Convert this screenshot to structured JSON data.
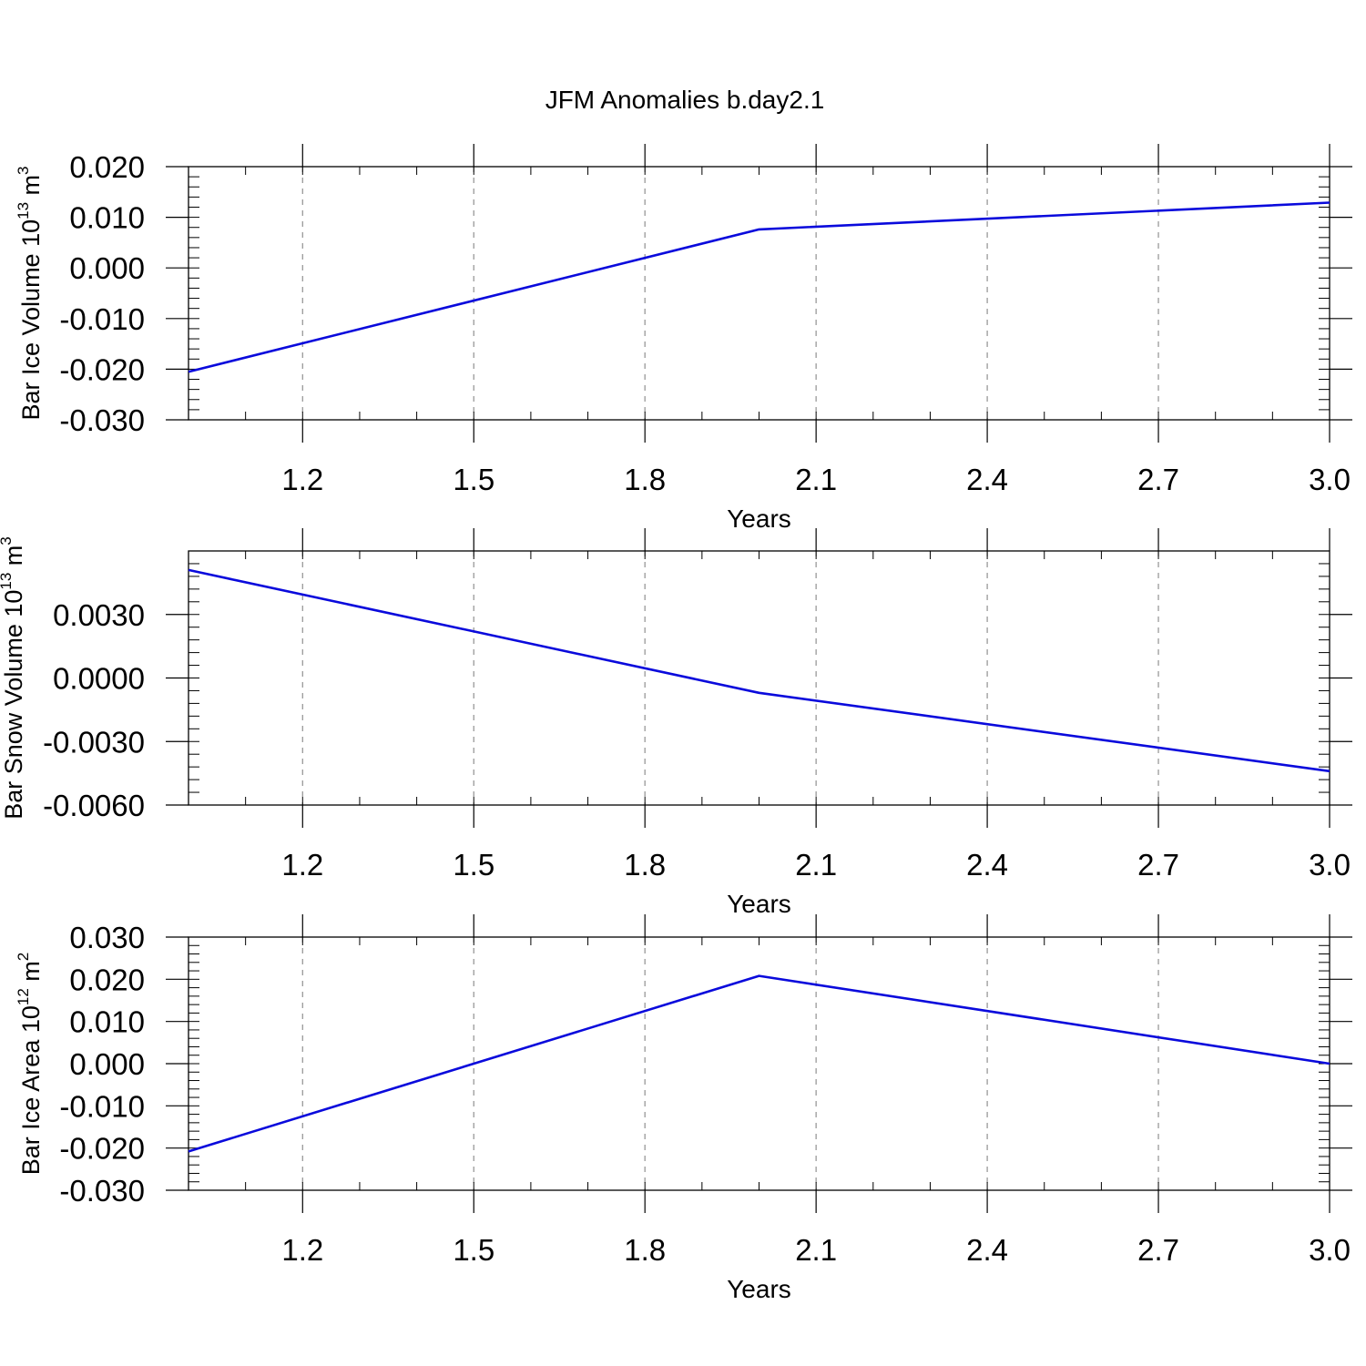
{
  "figure": {
    "title": "JFM Anomalies b.day2.1"
  },
  "colors": {
    "series_line": "#0a0adc",
    "frame": "#000000",
    "grid": "#999999"
  },
  "chart_data": [
    {
      "type": "line",
      "xlabel": "Years",
      "ylabel": {
        "text": "Bar Ice Volume 10",
        "exp": "13",
        "unit": " m",
        "unit_exp": "3"
      },
      "xlim": [
        1.0,
        3.0
      ],
      "ylim": [
        -0.03,
        0.02
      ],
      "x_ticks": [
        "1.2",
        "1.5",
        "1.8",
        "2.1",
        "2.4",
        "2.7",
        "3.0"
      ],
      "y_ticks": [
        "0.020",
        "0.010",
        "0.000",
        "-0.010",
        "-0.020",
        "-0.030"
      ],
      "grid": "vertical dashed",
      "series": [
        {
          "x": [
            1.0,
            2.0,
            3.0
          ],
          "y": [
            -0.0205,
            0.0076,
            0.0129
          ]
        }
      ]
    },
    {
      "type": "line",
      "xlabel": "Years",
      "ylabel": {
        "text": "Bar Snow Volume 10",
        "exp": "13",
        "unit": " m",
        "unit_exp": "3"
      },
      "xlim": [
        1.0,
        3.0
      ],
      "ylim": [
        -0.006,
        0.006
      ],
      "x_ticks": [
        "1.2",
        "1.5",
        "1.8",
        "2.1",
        "2.4",
        "2.7",
        "3.0"
      ],
      "y_ticks": [
        "0.0030",
        "0.0000",
        "-0.0030",
        "-0.0060"
      ],
      "grid": "vertical dashed",
      "series": [
        {
          "x": [
            1.0,
            2.0,
            3.0
          ],
          "y": [
            0.0051,
            -0.0007,
            -0.0044
          ]
        }
      ]
    },
    {
      "type": "line",
      "xlabel": "Years",
      "ylabel": {
        "text": "Bar Ice Area 10",
        "exp": "12",
        "unit": " m",
        "unit_exp": "2"
      },
      "xlim": [
        1.0,
        3.0
      ],
      "ylim": [
        -0.03,
        0.03
      ],
      "x_ticks": [
        "1.2",
        "1.5",
        "1.8",
        "2.1",
        "2.4",
        "2.7",
        "3.0"
      ],
      "y_ticks": [
        "0.030",
        "0.020",
        "0.010",
        "0.000",
        "-0.010",
        "-0.020",
        "-0.030"
      ],
      "grid": "vertical dashed",
      "series": [
        {
          "x": [
            1.0,
            2.0,
            3.0
          ],
          "y": [
            -0.0208,
            0.0208,
            0.0
          ]
        }
      ]
    }
  ]
}
